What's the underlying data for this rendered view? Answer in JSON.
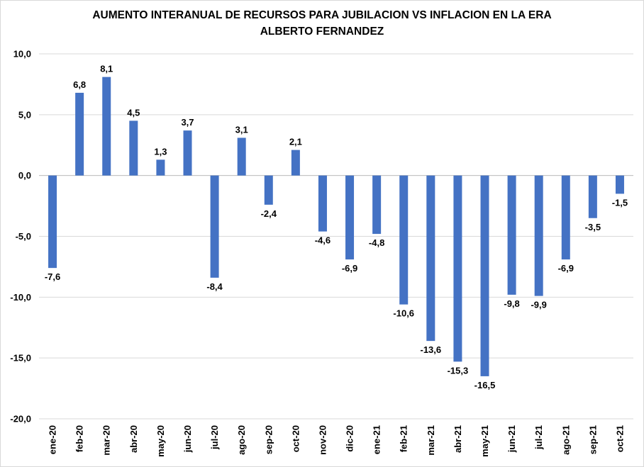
{
  "chart_data": {
    "type": "bar",
    "title_line1": "AUMENTO INTERANUAL DE RECURSOS PARA JUBILACION VS INFLACION EN LA ERA",
    "title_line2": "ALBERTO FERNANDEZ",
    "categories": [
      "ene-20",
      "feb-20",
      "mar-20",
      "abr-20",
      "may-20",
      "jun-20",
      "jul-20",
      "ago-20",
      "sep-20",
      "oct-20",
      "nov-20",
      "dic-20",
      "ene-21",
      "feb-21",
      "mar-21",
      "abr-21",
      "may-21",
      "jun-21",
      "jul-21",
      "ago-21",
      "sep-21",
      "oct-21"
    ],
    "values": [
      -7.6,
      6.8,
      8.1,
      4.5,
      1.3,
      3.7,
      -8.4,
      3.1,
      -2.4,
      2.1,
      -4.6,
      -6.9,
      -4.8,
      -10.6,
      -13.6,
      -15.3,
      -16.5,
      -9.8,
      -9.9,
      -6.9,
      -3.5,
      -1.5
    ],
    "value_labels": [
      "-7,6",
      "6,8",
      "8,1",
      "4,5",
      "1,3",
      "3,7",
      "-8,4",
      "3,1",
      "-2,4",
      "2,1",
      "-4,6",
      "-6,9",
      "-4,8",
      "-10,6",
      "-13,6",
      "-15,3",
      "-16,5",
      "-9,8",
      "-9,9",
      "-6,9",
      "-3,5",
      "-1,5"
    ],
    "y_ticks": [
      10,
      5,
      0,
      -5,
      -10,
      -15,
      -20
    ],
    "y_tick_labels": [
      "10,0",
      "5,0",
      "0,0",
      "-5,0",
      "-10,0",
      "-15,0",
      "-20,0"
    ],
    "ylim": [
      -20,
      10
    ],
    "grid": true,
    "bar_color": "#4472c4",
    "xlabel": "",
    "ylabel": ""
  }
}
